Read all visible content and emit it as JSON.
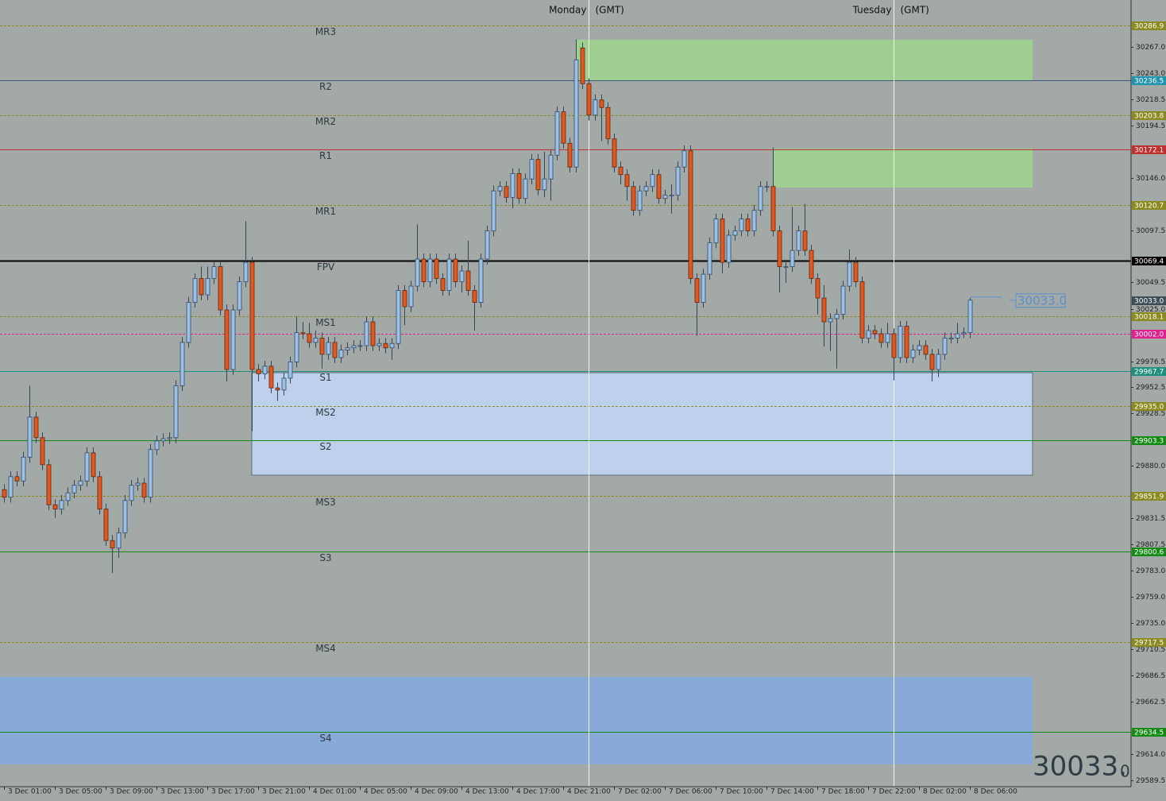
{
  "chart_data": {
    "type": "candlestick",
    "categories": [
      "3 Dec 01:00",
      null,
      null,
      null,
      null,
      null,
      null,
      null,
      "3 Dec 05:00",
      null,
      null,
      null,
      null,
      null,
      null,
      null,
      "3 Dec 09:00",
      null,
      null,
      null,
      null,
      null,
      null,
      null,
      "3 Dec 13:00",
      null,
      null,
      null,
      null,
      null,
      null,
      null,
      "3 Dec 17:00",
      null,
      null,
      null,
      null,
      null,
      null,
      null,
      "3 Dec 21:00",
      null,
      null,
      null,
      null,
      null,
      null,
      null,
      "4 Dec 01:00",
      null,
      null,
      null,
      null,
      null,
      null,
      null,
      "4 Dec 05:00",
      null,
      null,
      null,
      null,
      null,
      null,
      null,
      "4 Dec 09:00",
      null,
      null,
      null,
      null,
      null,
      null,
      null,
      "4 Dec 13:00",
      null,
      null,
      null,
      null,
      null,
      null,
      null,
      "4 Dec 17:00",
      null,
      null,
      null,
      null,
      null,
      null,
      null,
      "4 Dec 21:00",
      null,
      null,
      null,
      null,
      null,
      null,
      null,
      "7 Dec 02:00",
      null,
      null,
      null,
      null,
      null,
      null,
      null,
      "7 Dec 06:00",
      null,
      null,
      null,
      null,
      null,
      null,
      null,
      "7 Dec 10:00",
      null,
      null,
      null,
      null,
      null,
      null,
      null,
      "7 Dec 14:00",
      null,
      null,
      null,
      null,
      null,
      null,
      null,
      "7 Dec 18:00",
      null,
      null,
      null,
      null,
      null,
      null,
      null,
      "7 Dec 22:00",
      null,
      null,
      null,
      null,
      null,
      null,
      null,
      "8 Dec 02:00",
      null,
      null,
      null,
      null,
      null,
      null,
      null,
      "8 Dec 06:00"
    ],
    "open": [
      29858,
      29851,
      29870,
      29866,
      29888,
      29925,
      29906,
      29881,
      29844,
      29840,
      29848,
      29855,
      29862,
      29866,
      29892,
      29870,
      29840,
      29811,
      29804,
      29818,
      29848,
      29862,
      29864,
      29851,
      29895,
      29903,
      29905,
      29906,
      29954,
      29994,
      30031,
      30053,
      30038,
      30053,
      30064,
      30024,
      29969,
      30024,
      30050,
      30068,
      29969,
      29965,
      29972,
      29952,
      29950,
      29961,
      29976,
      30003,
      30002,
      29994,
      29998,
      29983,
      29994,
      29980,
      29987,
      29989,
      29991,
      29991,
      30013,
      29991,
      29993,
      29989,
      29993,
      30042,
      30027,
      30046,
      30071,
      30050,
      30071,
      30053,
      30042,
      30071,
      30050,
      30060,
      30042,
      30031,
      30071,
      30097,
      30134,
      30138,
      30128,
      30150,
      30127,
      30145,
      30163,
      30135,
      30145,
      30167,
      30207,
      30178,
      30156,
      30266,
      30233,
      30204,
      30218,
      30211,
      30182,
      30156,
      30149,
      30138,
      30116,
      30134,
      30138,
      30149,
      30127,
      30130,
      30130,
      30156,
      30171,
      30053,
      30031,
      30057,
      30086,
      30108,
      30068,
      30093,
      30097,
      30108,
      30097,
      30116,
      30138,
      30138,
      30097,
      30064,
      30064,
      30079,
      30097,
      30079,
      30053,
      30035,
      30013,
      30016,
      30020,
      30046,
      30068,
      30050,
      29998,
      30005,
      30002,
      29994,
      30002,
      29980,
      30009,
      29980,
      29987,
      29991,
      29983,
      29969,
      29983,
      29998,
      29998,
      30002,
      30003
    ],
    "high": [
      29863,
      29875,
      29875,
      29893,
      29954,
      29930,
      29911,
      29886,
      29849,
      29853,
      29860,
      29867,
      29871,
      29897,
      29897,
      29875,
      29845,
      29816,
      29823,
      29853,
      29867,
      29869,
      29869,
      29900,
      29908,
      29910,
      29911,
      29959,
      29999,
      30036,
      30058,
      30064,
      30064,
      30069,
      30069,
      30029,
      30029,
      30055,
      30106,
      30073,
      29974,
      29977,
      29977,
      29957,
      29966,
      29981,
      30018,
      30013,
      30012,
      30005,
      30003,
      29999,
      29999,
      29992,
      29994,
      29996,
      29996,
      30018,
      30018,
      29998,
      29998,
      29998,
      30047,
      30047,
      30051,
      30103,
      30076,
      30076,
      30076,
      30058,
      30076,
      30076,
      30065,
      30088,
      30047,
      30076,
      30102,
      30139,
      30143,
      30143,
      30155,
      30155,
      30150,
      30168,
      30168,
      30170,
      30172,
      30212,
      30212,
      30183,
      30274,
      30271,
      30238,
      30223,
      30223,
      30216,
      30187,
      30161,
      30154,
      30143,
      30139,
      30143,
      30154,
      30154,
      30135,
      30140,
      30161,
      30176,
      30176,
      30058,
      30062,
      30091,
      30113,
      30113,
      30098,
      30102,
      30113,
      30113,
      30121,
      30143,
      30143,
      30174,
      30102,
      30069,
      30119,
      30102,
      30122,
      30084,
      30058,
      30047,
      30021,
      30025,
      30051,
      30080,
      30073,
      30055,
      30010,
      30010,
      30007,
      30012,
      30007,
      30014,
      30014,
      29992,
      29996,
      29996,
      29988,
      29988,
      30003,
      30003,
      30012,
      30008,
      30035
    ],
    "low": [
      29846,
      29846,
      29861,
      29861,
      29883,
      29901,
      29876,
      29839,
      29832,
      29835,
      29843,
      29850,
      29857,
      29861,
      29865,
      29835,
      29806,
      29781,
      29795,
      29813,
      29843,
      29857,
      29846,
      29846,
      29890,
      29898,
      29900,
      29901,
      29949,
      29989,
      30026,
      30033,
      30033,
      30048,
      30019,
      29958,
      29964,
      30019,
      30045,
      29912,
      29958,
      29960,
      29947,
      29940,
      29945,
      29956,
      29971,
      29997,
      29989,
      29989,
      29970,
      29978,
      29975,
      29975,
      29982,
      29984,
      29986,
      29986,
      29986,
      29986,
      29984,
      29978,
      29988,
      30010,
      30022,
      30041,
      30045,
      30045,
      30048,
      30037,
      30037,
      30045,
      30040,
      30037,
      30005,
      30026,
      30066,
      30092,
      30129,
      30123,
      30118,
      30122,
      30122,
      30140,
      30130,
      30128,
      30125,
      30162,
      30173,
      30151,
      30151,
      30228,
      30199,
      30199,
      30180,
      30177,
      30151,
      30140,
      30125,
      30111,
      30111,
      30129,
      30133,
      30122,
      30122,
      30113,
      30125,
      30151,
      30048,
      30000,
      30026,
      30052,
      30081,
      30058,
      30063,
      30088,
      30092,
      30092,
      30092,
      30111,
      30133,
      30092,
      30040,
      30049,
      30059,
      30074,
      30074,
      30048,
      30020,
      29990,
      29986,
      29970,
      30015,
      30041,
      30045,
      29993,
      29993,
      29997,
      29989,
      29989,
      29959,
      29975,
      29975,
      29975,
      29982,
      29978,
      29958,
      29962,
      29978,
      29993,
      29993,
      29998,
      29998
    ],
    "close": [
      29851,
      29870,
      29866,
      29888,
      29925,
      29906,
      29881,
      29844,
      29840,
      29848,
      29855,
      29862,
      29866,
      29892,
      29870,
      29840,
      29811,
      29804,
      29818,
      29848,
      29862,
      29864,
      29851,
      29895,
      29903,
      29905,
      29906,
      29954,
      29994,
      30031,
      30053,
      30038,
      30053,
      30064,
      30024,
      29969,
      30024,
      30050,
      30068,
      29969,
      29965,
      29972,
      29952,
      29950,
      29961,
      29976,
      30003,
      30002,
      29994,
      29998,
      29983,
      29994,
      29980,
      29987,
      29989,
      29991,
      29991,
      30013,
      29991,
      29993,
      29989,
      29993,
      30042,
      30027,
      30046,
      30071,
      30050,
      30071,
      30053,
      30042,
      30071,
      30050,
      30060,
      30042,
      30031,
      30071,
      30097,
      30134,
      30138,
      30128,
      30150,
      30127,
      30145,
      30163,
      30135,
      30145,
      30167,
      30207,
      30178,
      30156,
      30255,
      30233,
      30204,
      30218,
      30211,
      30182,
      30156,
      30149,
      30138,
      30116,
      30134,
      30138,
      30149,
      30127,
      30130,
      30130,
      30156,
      30171,
      30053,
      30031,
      30057,
      30086,
      30108,
      30068,
      30093,
      30097,
      30108,
      30097,
      30116,
      30138,
      30138,
      30097,
      30064,
      30064,
      30079,
      30097,
      30079,
      30053,
      30035,
      30013,
      30016,
      30020,
      30046,
      30068,
      30050,
      29998,
      30005,
      30002,
      29994,
      30002,
      29980,
      30009,
      29980,
      29987,
      29991,
      29983,
      29969,
      29983,
      29998,
      29998,
      30002,
      30003,
      30033
    ],
    "colors": {
      "up": "#9dbfe2",
      "down": "#e4581e",
      "wick": "#34465a"
    },
    "ylim": [
      29583.6,
      30310.3
    ],
    "yticks": [
      {
        "value": 30267,
        "label": "30267.0"
      },
      {
        "value": 30243,
        "label": "30243.0"
      },
      30218.5,
      30194.5,
      {
        "value": 30146,
        "label": "30146.0"
      },
      30097.5,
      30049.5,
      {
        "value": 30025,
        "label": "30025.0"
      },
      29976.5,
      29952.5,
      29928.5,
      {
        "value": 29880,
        "label": "29880.0"
      },
      29831.5,
      29807.5,
      {
        "value": 29783,
        "label": "29783.0"
      },
      {
        "value": 29759,
        "label": "29759.0"
      },
      {
        "value": 29735,
        "label": "29735.0"
      },
      29710.5,
      29686.5,
      29662.5,
      {
        "value": 29614,
        "label": "29614.0"
      },
      29589.5
    ],
    "sessions": [
      {
        "label": "Monday",
        "zone": "(GMT)"
      },
      {
        "label": "Tuesday",
        "zone": "(GMT)"
      }
    ],
    "zones": [
      {
        "top": 30273.6,
        "bottom": 30235.4,
        "color": "#9fcf90"
      },
      {
        "top": 30173,
        "bottom": 30137.1,
        "color": "#9fcf90"
      },
      {
        "top": 29966,
        "bottom": 29871.4,
        "color": "#bdd1ec"
      },
      {
        "top": 29685,
        "bottom": 29604.2,
        "color": "#88aad8"
      }
    ],
    "levels": [
      {
        "name": "MR3",
        "value": 30286.9,
        "style": "dashed",
        "color": "#8a8a20"
      },
      {
        "name": "R2",
        "value": 30236.5,
        "style": "solid",
        "color": "#3b5a7a",
        "tag_color": "#2093b0"
      },
      {
        "name": "MR2",
        "value": 30203.8,
        "style": "dashed",
        "color": "#8a8a20"
      },
      {
        "name": "R1",
        "value": 30172.1,
        "style": "solid",
        "color": "#c0302e"
      },
      {
        "name": "MR1",
        "value": 30120.7,
        "style": "dashed",
        "color": "#8a8a20"
      },
      {
        "name": "FPV",
        "value": 30069.4,
        "style": "solid",
        "color": "#000000"
      },
      {
        "value": 30033,
        "value_label": "30033.0",
        "style": "none",
        "color": "#3e4c55"
      },
      {
        "name": "MS1",
        "value": 30018.1,
        "style": "dashed",
        "color": "#8a8a20"
      },
      {
        "value": 30002,
        "value_label": "30002.0",
        "style": "dashed",
        "color": "#e0208c"
      },
      {
        "name": "S1",
        "value": 29967.7,
        "style": "solid",
        "color": "#20907e"
      },
      {
        "name": "MS2",
        "value": 29935,
        "value_label": "29935.0",
        "style": "dashed",
        "color": "#8a8a20"
      },
      {
        "name": "S2",
        "value": 29903.3,
        "style": "solid",
        "color": "#138a13"
      },
      {
        "name": "MS3",
        "value": 29851.9,
        "style": "dashed",
        "color": "#8a8a20"
      },
      {
        "name": "S3",
        "value": 29800.6,
        "style": "solid",
        "color": "#138a13"
      },
      {
        "name": "MS4",
        "value": 29717.5,
        "style": "dashed",
        "color": "#8a8a20"
      },
      {
        "name": "S4",
        "value": 29634.5,
        "style": "solid",
        "color": "#138a13"
      }
    ],
    "price_display": [
      "30033.",
      "0"
    ]
  }
}
